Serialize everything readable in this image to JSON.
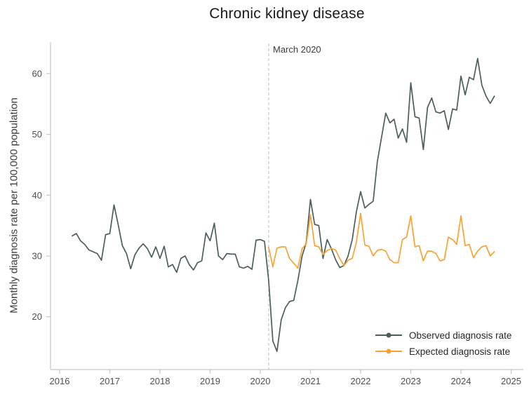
{
  "title": "Chronic kidney disease",
  "annotation": {
    "label": "March 2020",
    "year": 2020.167
  },
  "y_axis": {
    "label": "Monthly diagnosis rate per 100,000 population",
    "ticks": [
      20,
      30,
      40,
      50,
      60
    ]
  },
  "x_axis": {
    "ticks": [
      2016,
      2017,
      2018,
      2019,
      2020,
      2021,
      2022,
      2023,
      2024,
      2025
    ]
  },
  "colors": {
    "observed": "#4b5f58",
    "expected": "#f9a232",
    "axis": "#c6c6c6",
    "event_line": "#c6c6c6",
    "tick_text": "#4f4f4f",
    "title_text": "#1a1a1a"
  },
  "legend": {
    "position": "bottom-right"
  },
  "chart_data": {
    "type": "line",
    "title": "Chronic kidney disease",
    "xlabel": "",
    "ylabel": "Monthly diagnosis rate per 100,000 population",
    "x_unit": "month",
    "xlim": [
      2015.82,
      2025.24
    ],
    "ylim": [
      11.3,
      65
    ],
    "grid": false,
    "event_line": {
      "label": "March 2020",
      "year": 2020.167,
      "style": "dashed"
    },
    "series": [
      {
        "name": "Observed diagnosis rate",
        "color": "#4b5f58",
        "start": "2016-04",
        "monthly_values": [
          33.3,
          33.7,
          32.5,
          31.9,
          31.0,
          30.7,
          30.4,
          29.3,
          33.5,
          33.7,
          38.4,
          35.2,
          31.7,
          30.4,
          27.9,
          30.2,
          31.3,
          32.0,
          31.2,
          29.8,
          31.5,
          29.6,
          31.6,
          28.2,
          28.6,
          27.3,
          29.6,
          30.0,
          28.6,
          27.7,
          28.9,
          29.2,
          33.8,
          32.5,
          35.4,
          30.0,
          29.4,
          30.4,
          30.3,
          30.3,
          28.2,
          28.0,
          28.3,
          27.8,
          32.6,
          32.7,
          32.4,
          26.0,
          16.0,
          14.3,
          19.5,
          21.5,
          22.5,
          22.7,
          26.0,
          30.0,
          32.2,
          39.3,
          35.2,
          35.0,
          29.6,
          32.7,
          31.2,
          29.4,
          28.1,
          28.4,
          30.0,
          32.7,
          37.3,
          40.6,
          37.9,
          38.5,
          39.0,
          45.5,
          49.5,
          53.5,
          51.9,
          52.5,
          49.4,
          50.9,
          48.7,
          58.5,
          52.9,
          52.7,
          47.5,
          54.4,
          56.0,
          53.7,
          53.5,
          53.9,
          50.8,
          54.2,
          54.0,
          59.6,
          56.5,
          59.4,
          59.0,
          62.5,
          58.1,
          56.3,
          55.1,
          56.3
        ]
      },
      {
        "name": "Expected diagnosis rate",
        "color": "#f9a232",
        "start": "2020-03",
        "monthly_values": [
          31.4,
          28.2,
          31.3,
          31.5,
          31.5,
          29.6,
          28.8,
          28.0,
          31.2,
          32.0,
          36.8,
          31.7,
          31.5,
          30.2,
          30.9,
          31.2,
          31.0,
          29.6,
          28.4,
          29.3,
          29.6,
          32.3,
          37.0,
          31.8,
          31.6,
          30.0,
          30.9,
          31.1,
          30.8,
          29.4,
          28.9,
          28.9,
          32.7,
          33.1,
          36.6,
          31.5,
          31.7,
          29.2,
          30.8,
          30.8,
          30.4,
          29.2,
          29.4,
          33.1,
          32.7,
          31.9,
          36.6,
          31.7,
          31.9,
          29.7,
          30.8,
          31.5,
          31.7,
          30.0,
          30.7
        ]
      }
    ]
  }
}
